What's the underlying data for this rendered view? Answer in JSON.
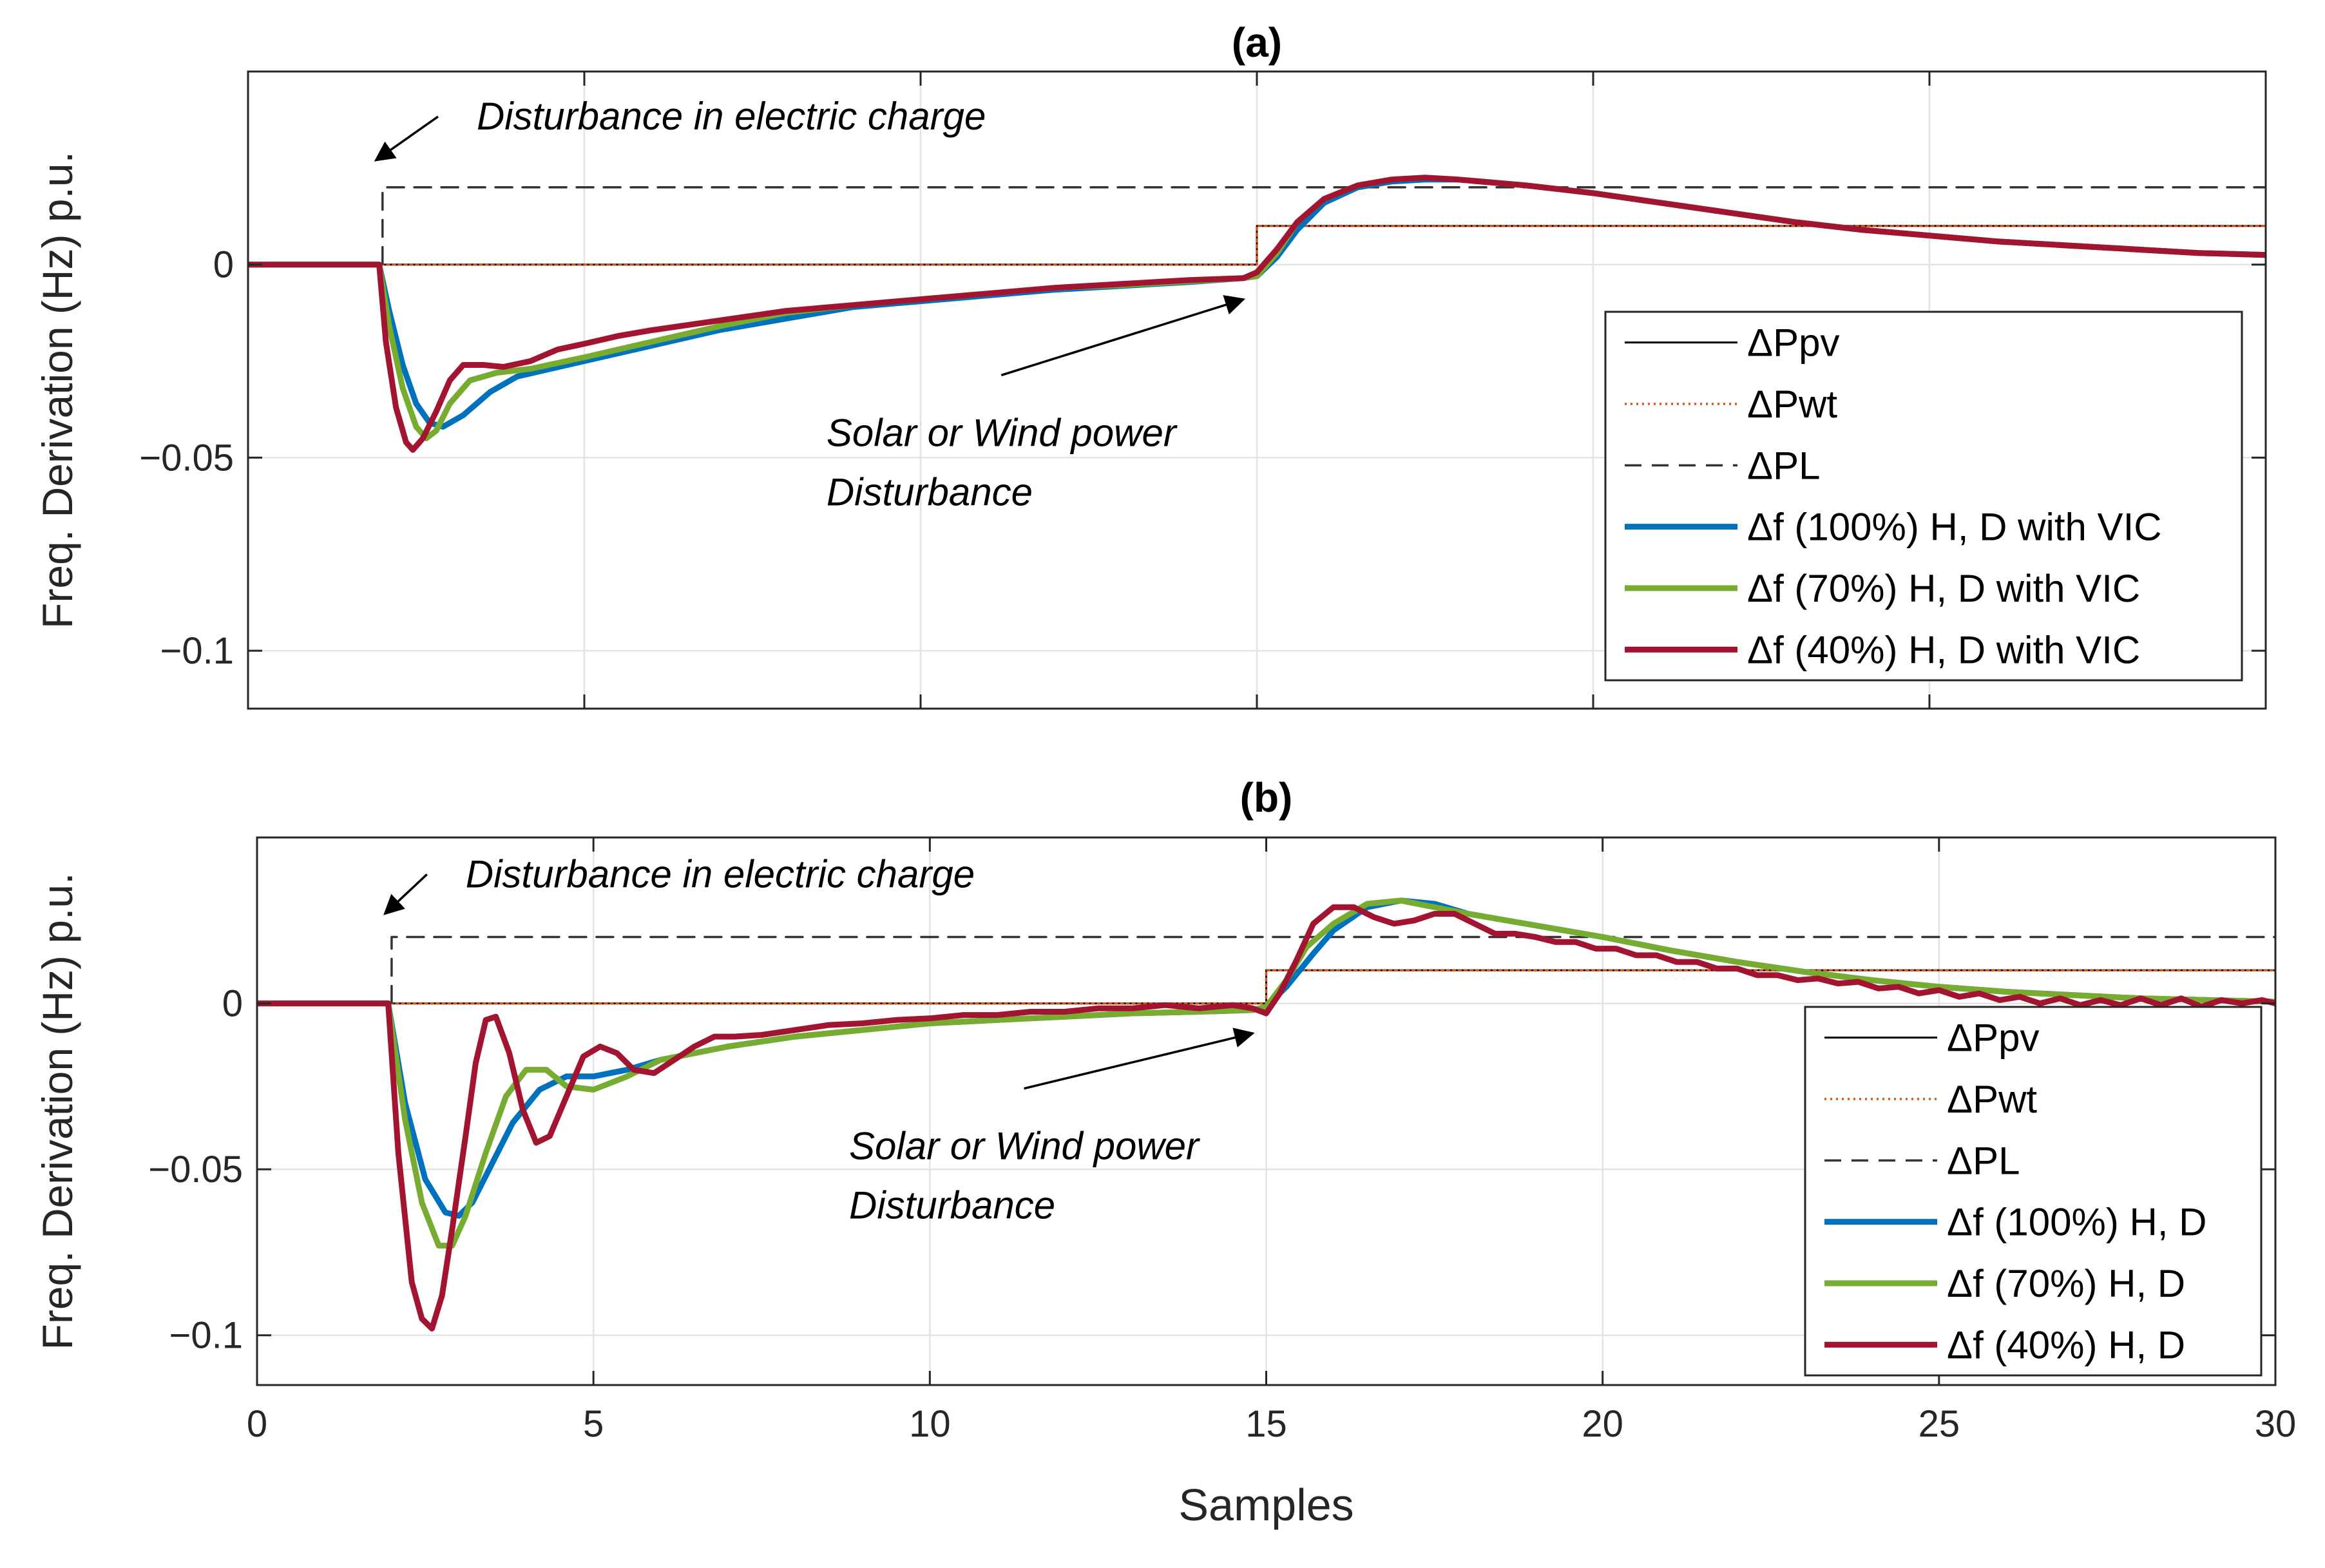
{
  "chart_data": [
    {
      "type": "line",
      "panel": "a",
      "title": "(a)",
      "ylabel": "Freq. Derivation (Hz) p.u.",
      "xlabel": "",
      "xlim": [
        0,
        30
      ],
      "ylim": [
        -0.115,
        0.05
      ],
      "xticks": [
        0,
        5,
        10,
        15,
        20,
        25,
        30
      ],
      "yticks": [
        0,
        -0.05,
        -0.1
      ],
      "ytick_labels": [
        "0",
        "−0.05",
        "−0.1"
      ],
      "grid": true,
      "legend_position": "bottom-right",
      "annotations": [
        {
          "text": "Disturbance in electric charge",
          "lines": [
            "Disturbance in electric charge"
          ],
          "arrow_x": 1.9,
          "arrow_y": 0.027,
          "text_x": 3.4,
          "text_y": 0.035
        },
        {
          "text": "Solar or Wind power Disturbance",
          "lines": [
            "Solar or Wind power",
            "Disturbance"
          ],
          "arrow_x": 14.8,
          "arrow_y": -0.009,
          "text_x": 8.6,
          "text_y": -0.047
        }
      ],
      "series": [
        {
          "name": "ΔPpv",
          "style": "solid-thin",
          "color": "#000000",
          "x": [
            0,
            15,
            15,
            30
          ],
          "values": [
            0,
            0,
            0.01,
            0.01
          ]
        },
        {
          "name": "ΔPwt",
          "style": "dotted",
          "color": "#d95319",
          "x": [
            0,
            15,
            15,
            30
          ],
          "values": [
            0,
            0,
            0.01,
            0.01
          ]
        },
        {
          "name": "ΔPL",
          "style": "dashed",
          "color": "#333333",
          "x": [
            0,
            2,
            2,
            30
          ],
          "values": [
            0,
            0,
            0.02,
            0.02
          ]
        },
        {
          "name": "Δf (100%) H, D with VIC",
          "style": "thick",
          "color": "#0072bd",
          "x": [
            0,
            1.95,
            2.1,
            2.3,
            2.5,
            2.7,
            2.9,
            3.2,
            3.6,
            4,
            5,
            6,
            7,
            8,
            9,
            10,
            11,
            12,
            13,
            14,
            14.8,
            15,
            15.3,
            15.6,
            16,
            16.5,
            17,
            17.5,
            18,
            19,
            20,
            21,
            22,
            23,
            24,
            25,
            26,
            27,
            28,
            29,
            30
          ],
          "values": [
            0,
            0,
            -0.012,
            -0.026,
            -0.036,
            -0.041,
            -0.042,
            -0.039,
            -0.033,
            -0.029,
            -0.025,
            -0.021,
            -0.017,
            -0.014,
            -0.011,
            -0.0095,
            -0.008,
            -0.0065,
            -0.0055,
            -0.0045,
            -0.0035,
            -0.003,
            0.002,
            0.009,
            0.016,
            0.02,
            0.0215,
            0.022,
            0.022,
            0.0205,
            0.0185,
            0.016,
            0.0135,
            0.011,
            0.009,
            0.0075,
            0.006,
            0.005,
            0.004,
            0.003,
            0.0025
          ]
        },
        {
          "name": "Δf (70%) H, D with VIC",
          "style": "thick",
          "color": "#77ac30",
          "x": [
            0,
            1.95,
            2.1,
            2.3,
            2.5,
            2.65,
            2.8,
            3.0,
            3.3,
            3.7,
            4.2,
            5,
            6,
            7,
            8,
            9,
            10,
            11,
            12,
            13,
            14,
            14.8,
            15,
            15.3,
            15.6,
            16,
            16.5,
            17,
            17.5,
            18,
            19,
            20,
            21,
            22,
            23,
            24,
            25,
            26,
            27,
            28,
            29,
            30
          ],
          "values": [
            0,
            0,
            -0.016,
            -0.032,
            -0.042,
            -0.045,
            -0.043,
            -0.036,
            -0.03,
            -0.028,
            -0.027,
            -0.024,
            -0.02,
            -0.016,
            -0.0125,
            -0.0105,
            -0.009,
            -0.0075,
            -0.006,
            -0.0053,
            -0.0043,
            -0.0035,
            -0.003,
            0.003,
            0.011,
            0.017,
            0.0205,
            0.022,
            0.0225,
            0.022,
            0.0205,
            0.0185,
            0.016,
            0.0135,
            0.011,
            0.009,
            0.0075,
            0.006,
            0.005,
            0.004,
            0.003,
            0.0025
          ]
        },
        {
          "name": "Δf (40%) H, D with VIC",
          "style": "thick",
          "color": "#a2142f",
          "x": [
            0,
            1.95,
            2.05,
            2.2,
            2.35,
            2.45,
            2.6,
            2.8,
            3.0,
            3.2,
            3.5,
            3.8,
            4.2,
            4.6,
            5,
            5.5,
            6,
            7,
            8,
            9,
            10,
            11,
            12,
            13,
            14,
            14.8,
            15,
            15.3,
            15.6,
            16,
            16.5,
            17,
            17.5,
            18,
            19,
            20,
            21,
            22,
            23,
            24,
            25,
            26,
            27,
            28,
            29,
            30
          ],
          "values": [
            0,
            0,
            -0.02,
            -0.037,
            -0.046,
            -0.048,
            -0.045,
            -0.038,
            -0.03,
            -0.026,
            -0.026,
            -0.0265,
            -0.025,
            -0.022,
            -0.0205,
            -0.0185,
            -0.017,
            -0.0145,
            -0.012,
            -0.0105,
            -0.009,
            -0.0075,
            -0.006,
            -0.005,
            -0.004,
            -0.0035,
            -0.002,
            0.004,
            0.011,
            0.017,
            0.0205,
            0.022,
            0.0225,
            0.022,
            0.0205,
            0.0185,
            0.016,
            0.0135,
            0.011,
            0.009,
            0.0075,
            0.006,
            0.005,
            0.004,
            0.003,
            0.0025
          ]
        }
      ]
    },
    {
      "type": "line",
      "panel": "b",
      "title": "(b)",
      "ylabel": "Freq. Derivation (Hz) p.u.",
      "xlabel": "Samples",
      "xlim": [
        0,
        30
      ],
      "ylim": [
        -0.115,
        0.05
      ],
      "xticks": [
        0,
        5,
        10,
        15,
        20,
        25,
        30
      ],
      "xtick_labels": [
        "0",
        "5",
        "10",
        "15",
        "20",
        "25",
        "30"
      ],
      "yticks": [
        0,
        -0.05,
        -0.1
      ],
      "ytick_labels": [
        "0",
        "−0.05",
        "−0.1"
      ],
      "grid": true,
      "legend_position": "bottom-right",
      "annotations": [
        {
          "text": "Disturbance in electric charge",
          "lines": [
            "Disturbance in electric charge"
          ],
          "arrow_x": 1.9,
          "arrow_y": 0.027,
          "text_x": 3.1,
          "text_y": 0.035
        },
        {
          "text": "Solar or Wind power Disturbance",
          "lines": [
            "Solar or Wind power",
            "Disturbance"
          ],
          "arrow_x": 14.8,
          "arrow_y": -0.009,
          "text_x": 8.8,
          "text_y": -0.047
        }
      ],
      "series": [
        {
          "name": "ΔPpv",
          "style": "solid-thin",
          "color": "#000000",
          "x": [
            0,
            15,
            15,
            30
          ],
          "values": [
            0,
            0,
            0.01,
            0.01
          ]
        },
        {
          "name": "ΔPwt",
          "style": "dotted",
          "color": "#d95319",
          "x": [
            0,
            15,
            15,
            30
          ],
          "values": [
            0,
            0,
            0.01,
            0.01
          ]
        },
        {
          "name": "ΔPL",
          "style": "dashed",
          "color": "#333333",
          "x": [
            0,
            2,
            2,
            30
          ],
          "values": [
            0,
            0,
            0.02,
            0.02
          ]
        },
        {
          "name": "Δf (100%) H, D",
          "style": "thick",
          "color": "#0072bd",
          "x": [
            0,
            1.95,
            2.2,
            2.5,
            2.8,
            3.0,
            3.2,
            3.5,
            3.8,
            4.2,
            4.6,
            5,
            5.5,
            6,
            7,
            8,
            9,
            10,
            11,
            12,
            13,
            14,
            14.8,
            15,
            15.3,
            15.7,
            16,
            16.5,
            17,
            17.5,
            18,
            19,
            20,
            21,
            22,
            23,
            24,
            25,
            26,
            27,
            28,
            29,
            30
          ],
          "values": [
            0,
            0,
            -0.03,
            -0.053,
            -0.063,
            -0.064,
            -0.06,
            -0.048,
            -0.036,
            -0.026,
            -0.022,
            -0.022,
            -0.02,
            -0.017,
            -0.013,
            -0.01,
            -0.008,
            -0.006,
            -0.005,
            -0.004,
            -0.003,
            -0.0025,
            -0.002,
            -0.001,
            0.005,
            0.015,
            0.022,
            0.029,
            0.031,
            0.03,
            0.027,
            0.0235,
            0.02,
            0.016,
            0.0125,
            0.0095,
            0.007,
            0.005,
            0.0035,
            0.0025,
            0.0015,
            0.001,
            0.0005
          ]
        },
        {
          "name": "Δf (70%) H, D",
          "style": "thick",
          "color": "#77ac30",
          "x": [
            0,
            1.95,
            2.2,
            2.45,
            2.7,
            2.9,
            3.1,
            3.4,
            3.7,
            4.0,
            4.3,
            4.6,
            5.0,
            5.5,
            6,
            7,
            8,
            9,
            10,
            11,
            12,
            13,
            14,
            14.8,
            15,
            15.3,
            15.6,
            16,
            16.5,
            17,
            17.5,
            18,
            19,
            20,
            21,
            22,
            23,
            24,
            25,
            26,
            27,
            28,
            29,
            30
          ],
          "values": [
            0,
            0,
            -0.035,
            -0.06,
            -0.073,
            -0.073,
            -0.064,
            -0.045,
            -0.028,
            -0.02,
            -0.02,
            -0.025,
            -0.026,
            -0.022,
            -0.017,
            -0.013,
            -0.01,
            -0.008,
            -0.006,
            -0.005,
            -0.004,
            -0.003,
            -0.0025,
            -0.002,
            -0.001,
            0.007,
            0.017,
            0.024,
            0.03,
            0.031,
            0.029,
            0.027,
            0.0235,
            0.02,
            0.016,
            0.0125,
            0.0095,
            0.007,
            0.005,
            0.0035,
            0.0025,
            0.0015,
            0.001,
            0.0005
          ]
        },
        {
          "name": "Δf (40%) H, D",
          "style": "thick",
          "color": "#a2142f",
          "x": [
            0,
            1.95,
            2.1,
            2.3,
            2.45,
            2.6,
            2.75,
            2.9,
            3.1,
            3.25,
            3.4,
            3.55,
            3.75,
            3.95,
            4.15,
            4.35,
            4.6,
            4.85,
            5.1,
            5.35,
            5.6,
            5.9,
            6.2,
            6.5,
            6.8,
            7.1,
            7.5,
            8,
            8.5,
            9,
            9.5,
            10,
            10.5,
            11,
            11.5,
            12,
            12.5,
            13,
            13.5,
            14,
            14.5,
            14.8,
            15,
            15.2,
            15.45,
            15.7,
            16,
            16.3,
            16.6,
            16.9,
            17.2,
            17.5,
            17.8,
            18.1,
            18.4,
            18.7,
            19,
            19.3,
            19.6,
            19.9,
            20.2,
            20.5,
            20.8,
            21.1,
            21.4,
            21.7,
            22,
            22.3,
            22.6,
            22.9,
            23.2,
            23.5,
            23.8,
            24.1,
            24.4,
            24.7,
            25,
            25.3,
            25.6,
            25.9,
            26.2,
            26.5,
            26.8,
            27.1,
            27.4,
            27.7,
            28,
            28.3,
            28.6,
            28.9,
            29.2,
            29.5,
            29.8,
            30
          ],
          "values": [
            0,
            0,
            -0.045,
            -0.084,
            -0.095,
            -0.098,
            -0.088,
            -0.068,
            -0.04,
            -0.018,
            -0.005,
            -0.004,
            -0.015,
            -0.032,
            -0.042,
            -0.04,
            -0.028,
            -0.016,
            -0.013,
            -0.015,
            -0.02,
            -0.021,
            -0.017,
            -0.013,
            -0.01,
            -0.01,
            -0.0095,
            -0.008,
            -0.0065,
            -0.006,
            -0.005,
            -0.0045,
            -0.0035,
            -0.0035,
            -0.0025,
            -0.0025,
            -0.0015,
            -0.0015,
            -0.0005,
            -0.0015,
            -0.0005,
            -0.0015,
            -0.003,
            0.003,
            0.013,
            0.024,
            0.029,
            0.029,
            0.026,
            0.024,
            0.025,
            0.027,
            0.027,
            0.024,
            0.021,
            0.021,
            0.02,
            0.0185,
            0.0185,
            0.0165,
            0.0165,
            0.0145,
            0.0145,
            0.0125,
            0.0125,
            0.0105,
            0.0105,
            0.0085,
            0.0085,
            0.007,
            0.0075,
            0.006,
            0.0065,
            0.0045,
            0.005,
            0.003,
            0.004,
            0.002,
            0.003,
            0.001,
            0.002,
            0.0,
            0.0015,
            -0.0005,
            0.001,
            -0.0005,
            0.0015,
            -0.0005,
            0.0015,
            -0.001,
            0.001,
            0.0,
            0.001,
            0.0
          ]
        }
      ]
    }
  ]
}
